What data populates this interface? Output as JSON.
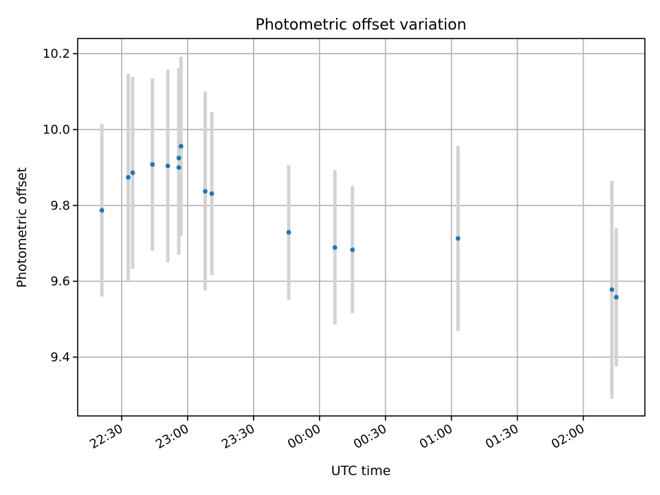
{
  "chart_data": {
    "type": "scatter",
    "title": "Photometric offset variation",
    "xlabel": "UTC time",
    "ylabel": "Photometric offset",
    "xlim": [
      "22:10",
      "02:28"
    ],
    "ylim": [
      9.245,
      10.24
    ],
    "x_ticks": [
      "22:30",
      "23:00",
      "23:30",
      "00:00",
      "00:30",
      "01:00",
      "01:30",
      "02:00"
    ],
    "y_ticks": [
      "9.4",
      "9.6",
      "9.8",
      "10.0",
      "10.2"
    ],
    "grid": true,
    "colors": {
      "point": "#1f77b4",
      "errorbar": "#d3d3d3",
      "grid": "#b0b0b0"
    },
    "points": [
      {
        "x": "22:21",
        "y": 9.787,
        "yerr_low": 9.56,
        "yerr_high": 10.015
      },
      {
        "x": "22:33",
        "y": 9.874,
        "yerr_low": 9.6,
        "yerr_high": 10.147
      },
      {
        "x": "22:35",
        "y": 9.886,
        "yerr_low": 9.633,
        "yerr_high": 10.139
      },
      {
        "x": "22:44",
        "y": 9.908,
        "yerr_low": 9.68,
        "yerr_high": 10.135
      },
      {
        "x": "22:51",
        "y": 9.904,
        "yerr_low": 9.65,
        "yerr_high": 10.158
      },
      {
        "x": "22:56",
        "y": 9.9,
        "yerr_low": 9.67,
        "yerr_high": 10.13
      },
      {
        "x": "22:56",
        "y": 9.925,
        "yerr_low": 9.688,
        "yerr_high": 10.162
      },
      {
        "x": "22:57",
        "y": 9.956,
        "yerr_low": 9.72,
        "yerr_high": 10.192
      },
      {
        "x": "23:08",
        "y": 9.837,
        "yerr_low": 9.576,
        "yerr_high": 10.1
      },
      {
        "x": "23:11",
        "y": 9.831,
        "yerr_low": 9.616,
        "yerr_high": 10.046
      },
      {
        "x": "23:46",
        "y": 9.729,
        "yerr_low": 9.551,
        "yerr_high": 9.906
      },
      {
        "x": "00:07",
        "y": 9.689,
        "yerr_low": 9.486,
        "yerr_high": 9.893
      },
      {
        "x": "00:15",
        "y": 9.683,
        "yerr_low": 9.516,
        "yerr_high": 9.851
      },
      {
        "x": "01:03",
        "y": 9.713,
        "yerr_low": 9.469,
        "yerr_high": 9.957
      },
      {
        "x": "02:13",
        "y": 9.578,
        "yerr_low": 9.29,
        "yerr_high": 9.865
      },
      {
        "x": "02:15",
        "y": 9.558,
        "yerr_low": 9.376,
        "yerr_high": 9.74
      }
    ]
  }
}
